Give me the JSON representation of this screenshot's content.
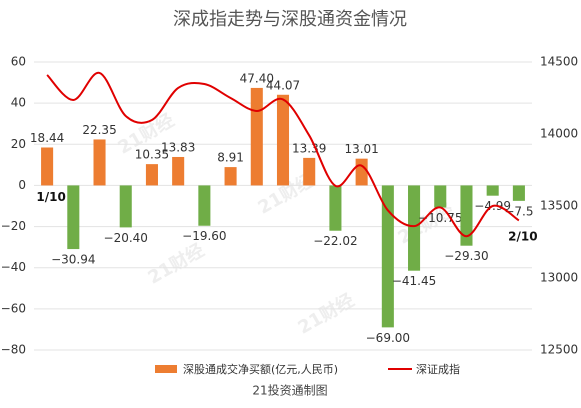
{
  "chart_data": {
    "type": "bar_line",
    "title": "深成指走势与深股通资金情况",
    "footer": "21投资通制图",
    "watermark": "21财经",
    "categories": [
      "1/10",
      null,
      null,
      null,
      null,
      null,
      null,
      null,
      null,
      null,
      null,
      null,
      null,
      null,
      null,
      null,
      null,
      null,
      "2/10"
    ],
    "series": [
      {
        "name": "深股通成交净买额(亿元,人民币)",
        "type": "bar",
        "color": "#ed7d31",
        "negative_color": "#70ad47",
        "values": [
          18.44,
          -30.94,
          22.35,
          -20.4,
          10.35,
          13.83,
          -19.6,
          8.91,
          47.4,
          44.07,
          13.39,
          -22.02,
          13.01,
          -69.0,
          -41.45,
          -10.75,
          -29.3,
          -4.99,
          -7.5
        ],
        "value_labels": [
          "18.44",
          "−30.94",
          "22.35",
          "−20.40",
          "10.35",
          "13.83",
          "−19.60",
          "8.91",
          "47.40",
          "44.07",
          "13.39",
          "−22.02",
          "13.01",
          "−69.00",
          "−41.45",
          "−10.75",
          "−29.30",
          "−4.99",
          "−7.5"
        ]
      },
      {
        "name": "深证成指",
        "type": "line",
        "axis": "y2",
        "color": "#e00000",
        "values": [
          14410,
          14236,
          14424,
          14125,
          14097,
          14320,
          14347,
          14250,
          14160,
          14240,
          13990,
          13640,
          13780,
          13470,
          13360,
          13490,
          13290,
          13500,
          13400
        ]
      }
    ],
    "ylim": [
      -80,
      60
    ],
    "yticks": [
      {
        "value": -80,
        "label": "−80"
      },
      {
        "value": -60,
        "label": "−60"
      },
      {
        "value": -40,
        "label": "−40"
      },
      {
        "value": -20,
        "label": "−20"
      },
      0,
      20,
      40,
      60
    ],
    "y2lim": [
      12500,
      14500
    ],
    "y2ticks": [
      12500,
      13000,
      13500,
      14000,
      14500
    ],
    "grid": true
  }
}
